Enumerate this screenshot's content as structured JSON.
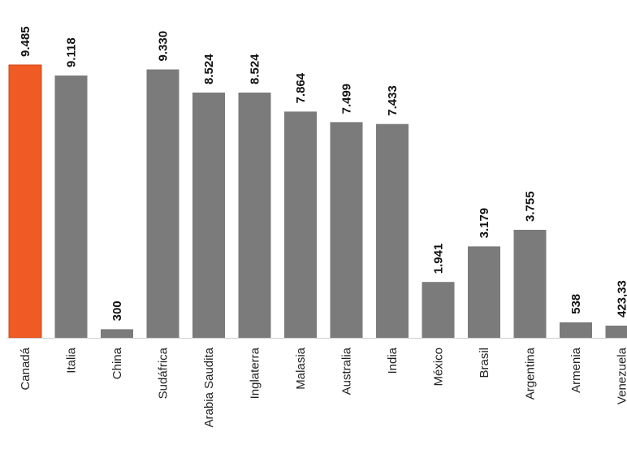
{
  "chart_data": {
    "type": "bar",
    "categories": [
      "Canadá",
      "Italia",
      "China",
      "Sudáfrica",
      "Arabia Saudita",
      "Inglaterra",
      "Malasia",
      "Australia",
      "India",
      "México",
      "Brasil",
      "Argentina",
      "Armenia",
      "Venezuela"
    ],
    "values": [
      9485,
      9118,
      300,
      9330,
      8524,
      8524,
      7864,
      7499,
      7433,
      1941,
      3179,
      3755,
      538,
      423.33
    ],
    "value_labels": [
      "9.485",
      "9.118",
      "300",
      "9.330",
      "8.524",
      "8.524",
      "7.864",
      "7.499",
      "7.433",
      "1.941",
      "3.179",
      "3.755",
      "538",
      "423,33"
    ],
    "highlight_index": 0,
    "ylim": [
      0,
      9485
    ],
    "grid": false,
    "legend": "none",
    "title": "",
    "xlabel": "",
    "ylabel": ""
  },
  "colors": {
    "bar": "#7b7b7b",
    "highlight": "#f05a24",
    "highlight_stroke": "#d24818",
    "axis": "#cfcfcf"
  }
}
